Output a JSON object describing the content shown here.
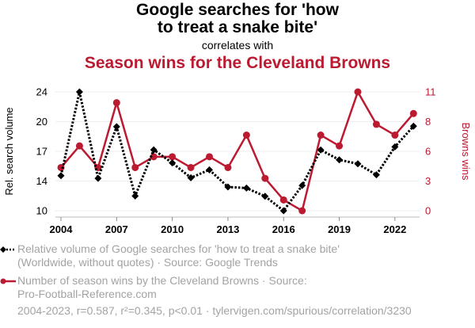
{
  "title": {
    "line1": "Google searches for 'how",
    "line2": "to treat a snake bite'",
    "subtitle": "correlates with",
    "line3": "Season wins for the Cleveland Browns"
  },
  "colors": {
    "primary_series": "#000000",
    "secondary_series": "#BB1A31",
    "legend_text": "#A3A3A3",
    "grid": "#EEEEEE"
  },
  "legend": [
    {
      "icon": "black-dotted-diamond-line",
      "line1": "Relative volume of Google searches for 'how to treat a snake bite'",
      "line2": "(Worldwide, without quotes) · Source: Google Trends"
    },
    {
      "icon": "red-solid-circle-line",
      "line1": "Number of season wins by the Cleveland Browns · Source:",
      "line2": "Pro-Football-Reference.com"
    }
  ],
  "footer": "2004-2023, r=0.587, r²=0.345, p<0.01 · tylervigen.com/spurious/correlation/3230",
  "chart_data": {
    "type": "line",
    "title": "Google searches for 'how to treat a snake bite' correlates with Season wins for the Cleveland Browns",
    "x": [
      2004,
      2005,
      2006,
      2007,
      2008,
      2009,
      2010,
      2011,
      2012,
      2013,
      2014,
      2015,
      2016,
      2017,
      2018,
      2019,
      2020,
      2021,
      2022,
      2023
    ],
    "xlabel": "",
    "x_ticks": [
      2004,
      2007,
      2010,
      2013,
      2016,
      2019,
      2022
    ],
    "x_range": [
      2004,
      2023
    ],
    "grid": "horizontal",
    "legend_position": "bottom",
    "series": [
      {
        "name": "Relative volume of Google searches for 'how to treat a snake bite'",
        "axis": "left",
        "style": "dotted line with diamond markers",
        "values": [
          14.13,
          24.0,
          13.82,
          19.9,
          11.74,
          17.18,
          15.63,
          13.89,
          14.82,
          12.8,
          12.67,
          11.7,
          10.0,
          12.98,
          17.16,
          16.0,
          15.53,
          14.23,
          17.53,
          19.96
        ]
      },
      {
        "name": "Number of season wins by the Cleveland Browns",
        "axis": "right",
        "style": "solid line with circle markers",
        "values": [
          4,
          6,
          4,
          10,
          4,
          5,
          5,
          4,
          5,
          4,
          7,
          3,
          1,
          0,
          7,
          6,
          11,
          8,
          7,
          9
        ]
      }
    ],
    "y_left": {
      "label": "Rel. search volume",
      "range": [
        10,
        24
      ],
      "tick_values": [
        10,
        13.5,
        17,
        20.5,
        24
      ],
      "tick_labels": [
        "10",
        "14",
        "17",
        "20",
        "24"
      ]
    },
    "y_right": {
      "label": "Browns wins",
      "range": [
        0,
        11
      ],
      "tick_values": [
        0,
        2.75,
        5.5,
        8.25,
        11
      ],
      "tick_labels": [
        "0",
        "3",
        "6",
        "8",
        "11"
      ]
    }
  }
}
